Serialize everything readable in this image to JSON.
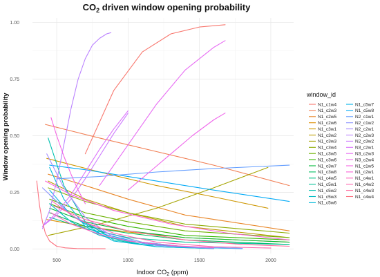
{
  "chart_data": {
    "type": "line",
    "title_main": "CO",
    "title_sub": "2",
    "title_rest": " driven window opening probability",
    "xlabel_main": "Indoor CO",
    "xlabel_sub": "2",
    "xlabel_rest": " (ppm)",
    "ylabel": "Window opening probability",
    "xlim": [
      330,
      2160
    ],
    "ylim": [
      -0.02,
      1.02
    ],
    "x_ticks": [
      500,
      1000,
      1500,
      2000
    ],
    "y_ticks": [
      0.0,
      0.25,
      0.5,
      0.75,
      1.0
    ],
    "y_tick_labels": [
      "0.00",
      "0.25",
      "0.50",
      "0.75",
      "1.00"
    ],
    "grid": true,
    "legend_title": "window_id",
    "legend_position": "right",
    "series": [
      {
        "name": "N1_c1w4",
        "color": "#F8766D",
        "x": [
          700,
          900,
          1100,
          1300,
          1500,
          1680
        ],
        "y": [
          0.42,
          0.7,
          0.87,
          0.95,
          0.98,
          0.99
        ]
      },
      {
        "name": "N1_c2w3",
        "color": "#F17D52",
        "x": [
          420,
          800,
          1200,
          1600,
          2130
        ],
        "y": [
          0.55,
          0.49,
          0.43,
          0.37,
          0.28
        ]
      },
      {
        "name": "N1_c2w5",
        "color": "#E88526",
        "x": [
          440,
          700,
          1000,
          1400,
          2130
        ],
        "y": [
          0.33,
          0.28,
          0.22,
          0.15,
          0.08
        ]
      },
      {
        "name": "N1_c2w6",
        "color": "#DC8D00",
        "x": [
          430,
          700,
          1000,
          1400,
          2130
        ],
        "y": [
          0.13,
          0.1,
          0.075,
          0.05,
          0.03
        ]
      },
      {
        "name": "N1_c3w1",
        "color": "#CD9600",
        "x": [
          430,
          800,
          1200,
          1600,
          1980
        ],
        "y": [
          0.4,
          0.34,
          0.28,
          0.23,
          0.18
        ]
      },
      {
        "name": "N1_c3w2",
        "color": "#BB9D00",
        "x": [
          440,
          700,
          1000,
          1400,
          2130
        ],
        "y": [
          0.3,
          0.22,
          0.16,
          0.1,
          0.05
        ]
      },
      {
        "name": "N1_c3w3",
        "color": "#A5A400",
        "x": [
          440,
          800,
          1200,
          1600,
          1980
        ],
        "y": [
          0.06,
          0.11,
          0.18,
          0.27,
          0.36
        ]
      },
      {
        "name": "N1_c3w4",
        "color": "#8CAB00",
        "x": [
          440,
          700,
          1000,
          1400,
          2130
        ],
        "y": [
          0.27,
          0.21,
          0.16,
          0.11,
          0.07
        ]
      },
      {
        "name": "N1_c3w5",
        "color": "#6BB100",
        "x": [
          450,
          700,
          1000,
          1400,
          2130
        ],
        "y": [
          0.22,
          0.16,
          0.12,
          0.08,
          0.05
        ]
      },
      {
        "name": "N1_c3w6",
        "color": "#35B600",
        "x": [
          450,
          700,
          1000,
          1400,
          2130
        ],
        "y": [
          0.2,
          0.14,
          0.1,
          0.06,
          0.04
        ]
      },
      {
        "name": "N1_c3w7",
        "color": "#00BA38",
        "x": [
          450,
          700,
          1000,
          1400,
          2130
        ],
        "y": [
          0.18,
          0.12,
          0.08,
          0.05,
          0.03
        ]
      },
      {
        "name": "N1_c3w8",
        "color": "#00BD5F",
        "x": [
          450,
          700,
          1000,
          1400,
          2130
        ],
        "y": [
          0.16,
          0.1,
          0.07,
          0.04,
          0.02
        ]
      },
      {
        "name": "N1_c4w5",
        "color": "#00BF7D",
        "x": [
          450,
          600,
          800,
          1100,
          1400,
          1800
        ],
        "y": [
          0.24,
          0.15,
          0.08,
          0.03,
          0.01,
          0.003
        ]
      },
      {
        "name": "N1_c5w1",
        "color": "#00C097",
        "x": [
          450,
          700,
          1000,
          1400,
          2130
        ],
        "y": [
          0.14,
          0.09,
          0.05,
          0.03,
          0.02
        ]
      },
      {
        "name": "N1_c5w2",
        "color": "#00C0AF",
        "x": [
          440,
          550,
          700,
          900,
          1200,
          1600
        ],
        "y": [
          0.49,
          0.28,
          0.12,
          0.04,
          0.01,
          0.002
        ]
      },
      {
        "name": "N1_c5w3",
        "color": "#00BDC4",
        "x": [
          450,
          600,
          800,
          1100,
          1400,
          1800
        ],
        "y": [
          0.2,
          0.12,
          0.06,
          0.02,
          0.008,
          0.002
        ]
      },
      {
        "name": "N1_c5w6",
        "color": "#00B9D8",
        "x": [
          450,
          550,
          700,
          900,
          1200,
          1600
        ],
        "y": [
          0.36,
          0.22,
          0.1,
          0.035,
          0.01,
          0.002
        ]
      },
      {
        "name": "N1_c5w7",
        "color": "#00B2E9",
        "x": [
          450,
          600,
          800,
          1100,
          1400,
          1800
        ],
        "y": [
          0.26,
          0.15,
          0.07,
          0.025,
          0.008,
          0.002
        ]
      },
      {
        "name": "N1_c5w8",
        "color": "#00A9F6",
        "x": [
          450,
          700,
          1100,
          1600,
          2130
        ],
        "y": [
          0.37,
          0.35,
          0.31,
          0.26,
          0.21
        ]
      },
      {
        "name": "N2_c1w1",
        "color": "#619CFF",
        "x": [
          500,
          800,
          1200,
          1600,
          2130
        ],
        "y": [
          0.31,
          0.32,
          0.34,
          0.355,
          0.37
        ]
      },
      {
        "name": "N2_c1w2",
        "color": "#8B93FF",
        "x": [
          400,
          600,
          850,
          1100,
          1400,
          1800
        ],
        "y": [
          0.27,
          0.15,
          0.07,
          0.03,
          0.01,
          0.003
        ]
      },
      {
        "name": "N2_c2w1",
        "color": "#A58AFF",
        "x": [
          430,
          550,
          700,
          900,
          1200,
          1600
        ],
        "y": [
          0.42,
          0.27,
          0.14,
          0.05,
          0.015,
          0.003
        ]
      },
      {
        "name": "N2_c2w3",
        "color": "#BA81FF",
        "x": [
          400,
          450,
          500,
          550,
          600,
          650,
          700,
          750,
          800,
          850,
          880
        ],
        "y": [
          0.09,
          0.17,
          0.3,
          0.46,
          0.62,
          0.75,
          0.84,
          0.9,
          0.93,
          0.95,
          0.955
        ]
      },
      {
        "name": "N2_c3w2",
        "color": "#CC79FF",
        "x": [
          400,
          500,
          600,
          700,
          800,
          900,
          1000
        ],
        "y": [
          0.1,
          0.15,
          0.22,
          0.31,
          0.41,
          0.51,
          0.6
        ]
      },
      {
        "name": "N3_c2w1",
        "color": "#DB72FB",
        "x": [
          400,
          500,
          600,
          700,
          800,
          900,
          1000
        ],
        "y": [
          0.1,
          0.16,
          0.24,
          0.34,
          0.44,
          0.53,
          0.61
        ]
      },
      {
        "name": "N3_c2w3",
        "color": "#E76BF3",
        "x": [
          800,
          1000,
          1200,
          1400,
          1600,
          1680
        ],
        "y": [
          0.28,
          0.46,
          0.64,
          0.79,
          0.89,
          0.92
        ]
      },
      {
        "name": "N3_c2w4",
        "color": "#EF67EB",
        "x": [
          1000,
          1150,
          1300,
          1450,
          1600,
          1680
        ],
        "y": [
          0.26,
          0.34,
          0.42,
          0.5,
          0.57,
          0.6
        ]
      },
      {
        "name": "N1_c1w5",
        "color": "#F564E3",
        "x": [
          460,
          500,
          550,
          600,
          650,
          700
        ],
        "y": [
          0.58,
          0.5,
          0.41,
          0.33,
          0.26,
          0.2
        ]
      },
      {
        "name": "N1_c2w1",
        "color": "#FB61D7",
        "x": [
          420,
          600,
          900,
          1300,
          1700,
          2130
        ],
        "y": [
          0.3,
          0.24,
          0.17,
          0.11,
          0.07,
          0.04
        ]
      },
      {
        "name": "N1_c4w1",
        "color": "#FF62BC",
        "x": [
          460,
          600,
          800,
          1000,
          1300,
          1600
        ],
        "y": [
          0.16,
          0.11,
          0.065,
          0.035,
          0.015,
          0.006
        ]
      },
      {
        "name": "N1_c4w2",
        "color": "#FF65AE",
        "x": [
          470,
          650,
          900,
          1200,
          1600,
          2000
        ],
        "y": [
          0.21,
          0.13,
          0.07,
          0.03,
          0.01,
          0.004
        ]
      },
      {
        "name": "N1_c4w3",
        "color": "#FF699C",
        "x": [
          480,
          700,
          1000,
          1400,
          1800,
          2130
        ],
        "y": [
          0.19,
          0.13,
          0.08,
          0.04,
          0.02,
          0.012
        ]
      },
      {
        "name": "N1_c4w4",
        "color": "#FC717F",
        "x": [
          360,
          380,
          400,
          420,
          450,
          500,
          560,
          640,
          740,
          840
        ],
        "y": [
          0.3,
          0.19,
          0.12,
          0.07,
          0.035,
          0.012,
          0.005,
          0.002,
          0.001,
          0.001
        ]
      }
    ]
  }
}
